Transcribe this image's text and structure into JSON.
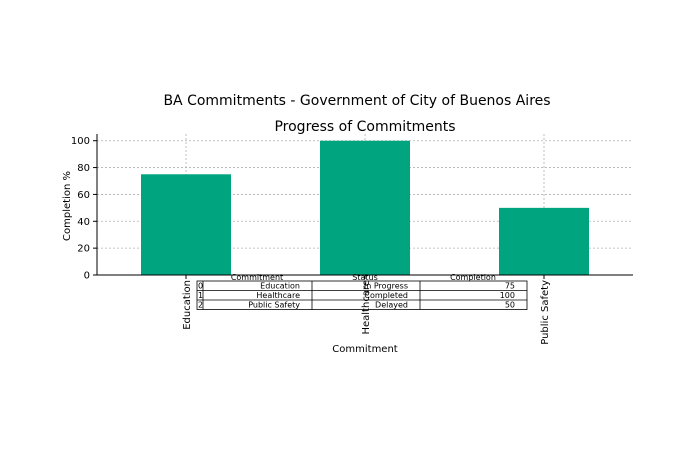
{
  "chart_data": {
    "type": "bar",
    "suptitle": "BA Commitments - Government of City of Buenos Aires",
    "title": "Progress of Commitments",
    "xlabel": "Commitment",
    "ylabel": "Completion %",
    "categories": [
      "Education",
      "Healthcare",
      "Public Safety"
    ],
    "values": [
      75,
      100,
      50
    ],
    "ylim": [
      0,
      105
    ],
    "yticks": [
      0,
      20,
      40,
      60,
      80,
      100
    ],
    "grid": true,
    "bar_color": "#00a47f",
    "table": {
      "columns": [
        "Commitment",
        "Status",
        "Completion"
      ],
      "rows": [
        {
          "index": "0",
          "commitment": "Education",
          "status": "In Progress",
          "completion": "75"
        },
        {
          "index": "1",
          "commitment": "Healthcare",
          "status": "Completed",
          "completion": "100"
        },
        {
          "index": "2",
          "commitment": "Public Safety",
          "status": "Delayed",
          "completion": "50"
        }
      ]
    }
  }
}
